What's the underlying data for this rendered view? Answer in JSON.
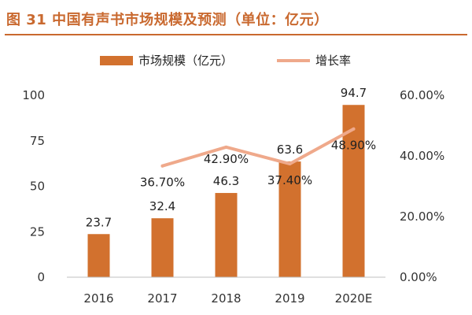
{
  "header": {
    "title": "图 31  中国有声书市场规模及预测（单位：亿元）"
  },
  "colors": {
    "bar": "#d2712e",
    "line": "#efa98b",
    "accent": "#c9692f"
  },
  "chart_data": {
    "type": "bar",
    "categories": [
      "2016",
      "2017",
      "2018",
      "2019",
      "2020E"
    ],
    "series": [
      {
        "name": "市场规模（亿元）",
        "type": "bar",
        "axis": "left",
        "values": [
          23.7,
          32.4,
          46.3,
          63.6,
          94.7
        ],
        "labels": [
          "23.7",
          "32.4",
          "46.3",
          "63.6",
          "94.7"
        ]
      },
      {
        "name": "增长率",
        "type": "line",
        "axis": "right",
        "values": [
          null,
          36.7,
          42.9,
          37.4,
          48.9
        ],
        "labels": [
          "",
          "36.70%",
          "42.90%",
          "37.40%",
          "48.90%"
        ]
      }
    ],
    "ylim": [
      0,
      100
    ],
    "yticks": [
      "0",
      "25",
      "50",
      "75",
      "100"
    ],
    "y2lim": [
      0,
      60
    ],
    "y2ticks": [
      "0.00%",
      "20.00%",
      "40.00%",
      "60.00%"
    ],
    "legend_position": "top",
    "grid": false
  }
}
